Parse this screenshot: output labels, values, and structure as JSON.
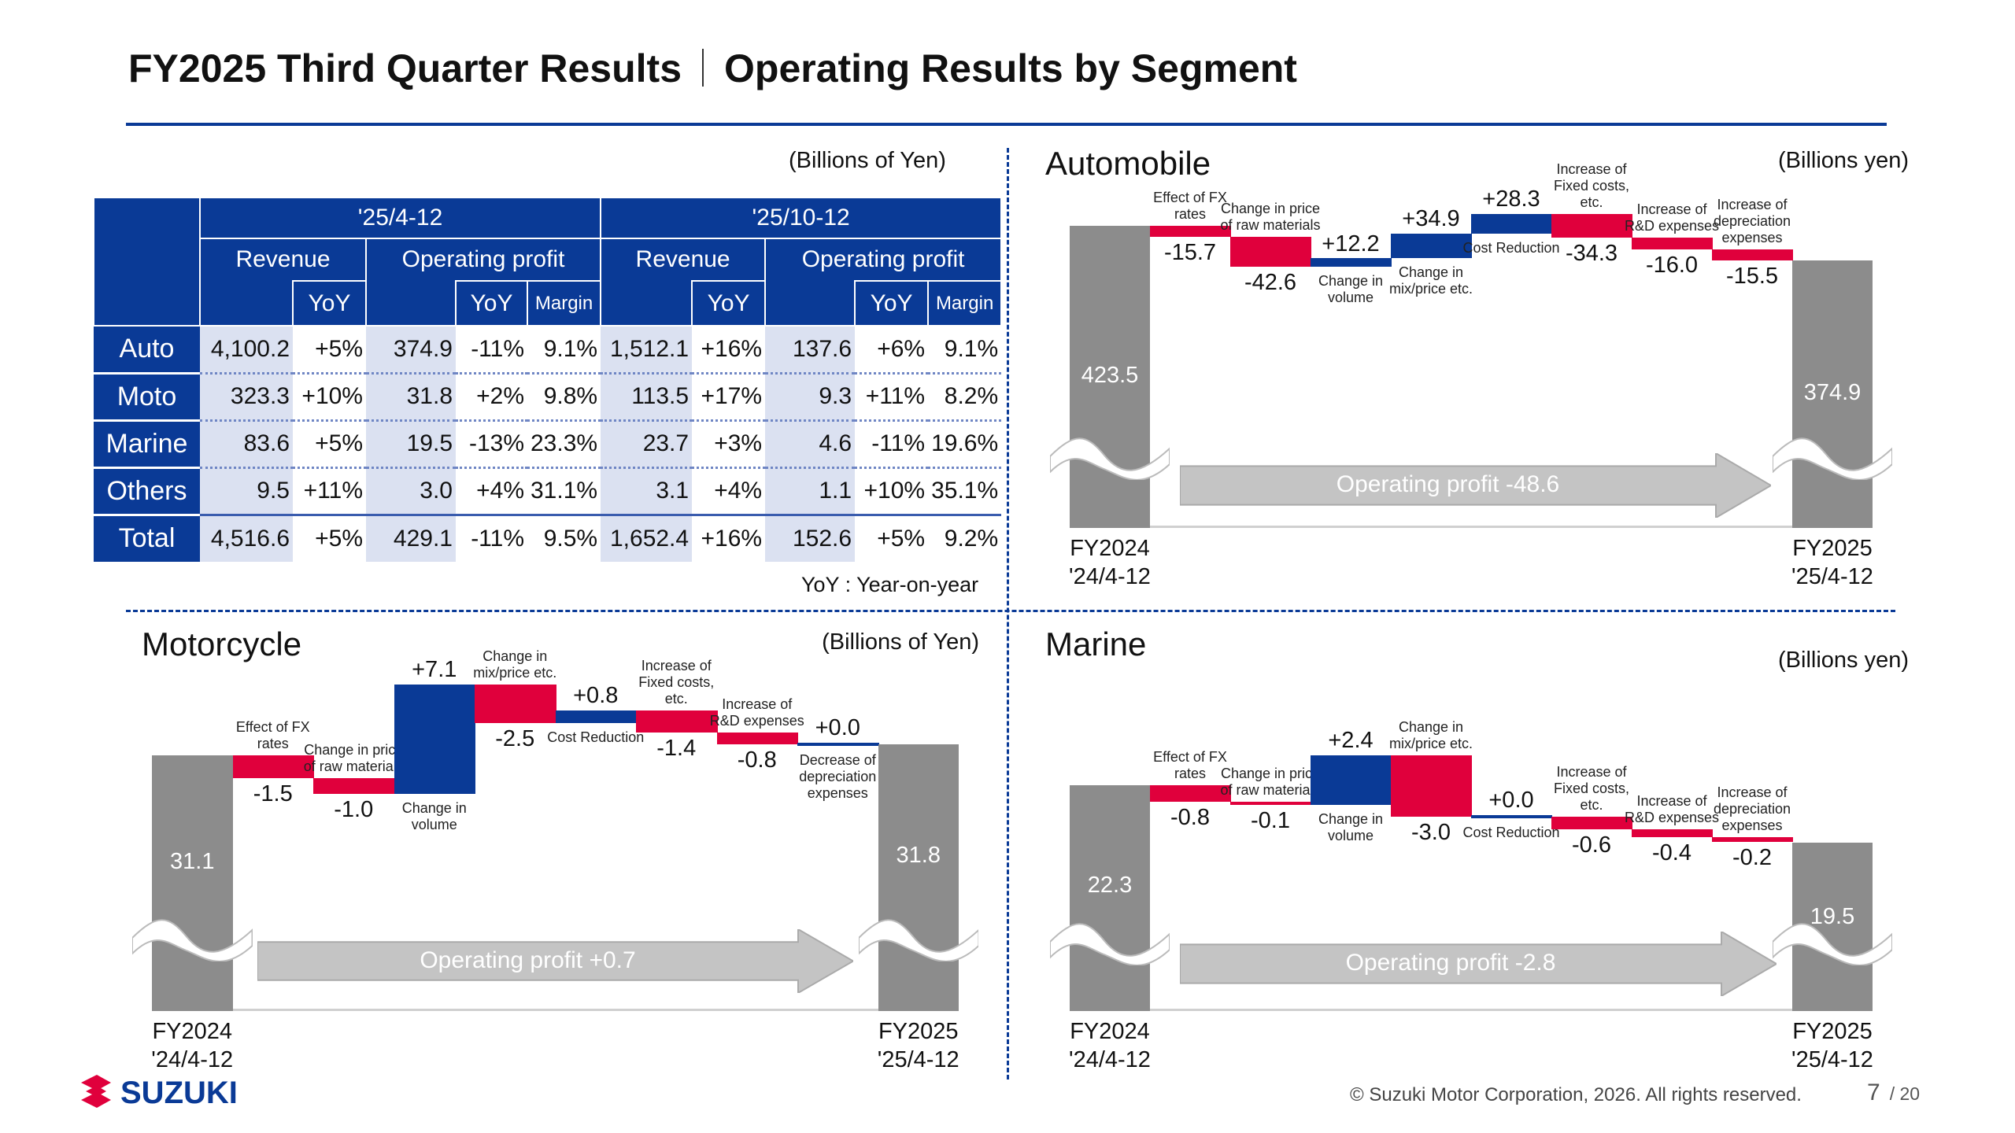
{
  "header": {
    "title": "FY2025 Third Quarter Results",
    "subtitle": "Operating Results by Segment"
  },
  "table": {
    "unit": "(Billions of Yen)",
    "periods": [
      "'25/4-12",
      "'25/10-12"
    ],
    "groups": [
      "Revenue",
      "Operating profit",
      "Revenue",
      "Operating profit"
    ],
    "sub": {
      "yoy": "YoY",
      "margin": "Margin"
    },
    "rows": [
      {
        "label": "Auto",
        "cells": [
          "4,100.2",
          "+5%",
          "374.9",
          "-11%",
          "9.1%",
          "1,512.1",
          "+16%",
          "137.6",
          "+6%",
          "9.1%"
        ]
      },
      {
        "label": "Moto",
        "cells": [
          "323.3",
          "+10%",
          "31.8",
          "+2%",
          "9.8%",
          "113.5",
          "+17%",
          "9.3",
          "+11%",
          "8.2%"
        ]
      },
      {
        "label": "Marine",
        "cells": [
          "83.6",
          "+5%",
          "19.5",
          "-13%",
          "23.3%",
          "23.7",
          "+3%",
          "4.6",
          "-11%",
          "19.6%"
        ]
      },
      {
        "label": "Others",
        "cells": [
          "9.5",
          "+11%",
          "3.0",
          "+4%",
          "31.1%",
          "3.1",
          "+4%",
          "1.1",
          "+10%",
          "35.1%"
        ]
      },
      {
        "label": "Total",
        "cells": [
          "4,516.6",
          "+5%",
          "429.1",
          "-11%",
          "9.5%",
          "1,652.4",
          "+16%",
          "152.6",
          "+5%",
          "9.2%"
        ]
      }
    ],
    "note": "YoY : Year-on-year"
  },
  "colors": {
    "accent": "#0a3a96",
    "increase": "#0a3a96",
    "decrease": "#e0003c",
    "total_bar": "#8c8c8c",
    "arrow": "#c4c4c4"
  },
  "chart_data": [
    {
      "type": "waterfall",
      "title": "Automobile",
      "unit": "(Billions yen)",
      "start": {
        "label": [
          "FY2024",
          "'24/4-12"
        ],
        "value": 423.5,
        "value_label": "423.5"
      },
      "end": {
        "label": [
          "FY2025",
          "'25/4-12"
        ],
        "value": 374.9,
        "value_label": "374.9"
      },
      "steps": [
        {
          "label": "Effect of FX rates",
          "value": -15.7,
          "value_label": "-15.7"
        },
        {
          "label": "Change in price of raw materials",
          "value": -42.6,
          "value_label": "-42.6"
        },
        {
          "label": "Change in volume",
          "value": 12.2,
          "value_label": "+12.2"
        },
        {
          "label": "Change in mix/price etc.",
          "value": 34.9,
          "value_label": "+34.9"
        },
        {
          "label": "Cost Reduction",
          "value": 28.3,
          "value_label": "+28.3"
        },
        {
          "label": "Increase of Fixed costs, etc.",
          "value": -34.3,
          "value_label": "-34.3"
        },
        {
          "label": "Increase of R&D expenses",
          "value": -16.0,
          "value_label": "-16.0"
        },
        {
          "label": "Increase of depreciation expenses",
          "value": -15.5,
          "value_label": "-15.5"
        }
      ],
      "arrow_label": "Operating profit -48.6",
      "axis_break": true
    },
    {
      "type": "waterfall",
      "title": "Motorcycle",
      "unit": "(Billions of Yen)",
      "start": {
        "label": [
          "FY2024",
          "'24/4-12"
        ],
        "value": 31.1,
        "value_label": "31.1"
      },
      "end": {
        "label": [
          "FY2025",
          "'25/4-12"
        ],
        "value": 31.8,
        "value_label": "31.8"
      },
      "steps": [
        {
          "label": "Effect of FX rates",
          "value": -1.5,
          "value_label": "-1.5"
        },
        {
          "label": "Change in price of raw materials",
          "value": -1.0,
          "value_label": "-1.0"
        },
        {
          "label": "Change in volume",
          "value": 7.1,
          "value_label": "+7.1"
        },
        {
          "label": "Change in mix/price etc.",
          "value": -2.5,
          "value_label": "-2.5"
        },
        {
          "label": "Cost Reduction",
          "value": 0.8,
          "value_label": "+0.8"
        },
        {
          "label": "Increase of Fixed costs, etc.",
          "value": -1.4,
          "value_label": "-1.4"
        },
        {
          "label": "Increase of R&D expenses",
          "value": -0.8,
          "value_label": "-0.8"
        },
        {
          "label": "Decrease of depreciation expenses",
          "value": 0.0,
          "value_label": "+0.0"
        }
      ],
      "arrow_label": "Operating profit +0.7",
      "axis_break": true
    },
    {
      "type": "waterfall",
      "title": "Marine",
      "unit": "(Billions yen)",
      "start": {
        "label": [
          "FY2024",
          "'24/4-12"
        ],
        "value": 22.3,
        "value_label": "22.3"
      },
      "end": {
        "label": [
          "FY2025",
          "'25/4-12"
        ],
        "value": 19.5,
        "value_label": "19.5"
      },
      "steps": [
        {
          "label": "Effect of FX rates",
          "value": -0.8,
          "value_label": "-0.8"
        },
        {
          "label": "Change in price of raw materials",
          "value": -0.1,
          "value_label": "-0.1"
        },
        {
          "label": "Change in volume",
          "value": 2.4,
          "value_label": "+2.4"
        },
        {
          "label": "Change in mix/price etc.",
          "value": -3.0,
          "value_label": "-3.0"
        },
        {
          "label": "Cost Reduction",
          "value": 0.0,
          "value_label": "+0.0"
        },
        {
          "label": "Increase of Fixed costs, etc.",
          "value": -0.6,
          "value_label": "-0.6"
        },
        {
          "label": "Increase of R&D expenses",
          "value": -0.4,
          "value_label": "-0.4"
        },
        {
          "label": "Increase of depreciation expenses",
          "value": -0.2,
          "value_label": "-0.2"
        }
      ],
      "arrow_label": "Operating profit -2.8",
      "axis_break": true
    }
  ],
  "footer": {
    "logo_text": "SUZUKI",
    "copyright": "© Suzuki Motor Corporation, 2026. All rights reserved.",
    "page": "7",
    "total": "/ 20"
  }
}
